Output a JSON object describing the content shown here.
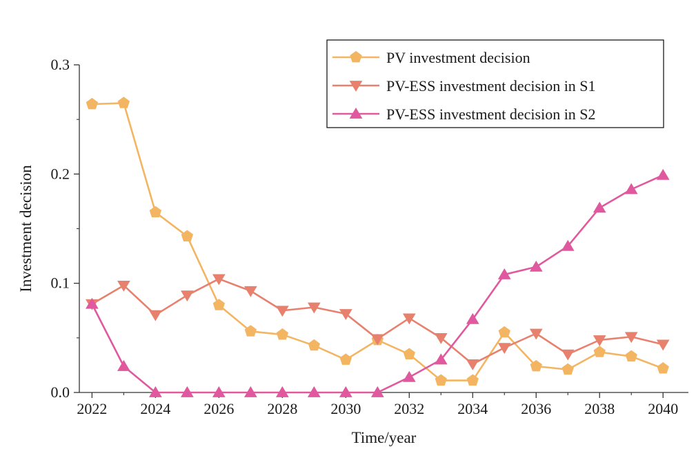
{
  "chart_data": {
    "type": "line",
    "title": "",
    "xlabel": "Time/year",
    "ylabel": "Investment decision",
    "xlim": [
      2021.6,
      2040.8
    ],
    "ylim": [
      0,
      0.3
    ],
    "x_ticks": [
      2022,
      2024,
      2026,
      2028,
      2030,
      2032,
      2034,
      2036,
      2038,
      2040
    ],
    "x_tick_labels": [
      "2022",
      "2024",
      "2026",
      "2028",
      "2030",
      "2032",
      "2034",
      "2036",
      "2038",
      "2040"
    ],
    "y_ticks": [
      0,
      0.1,
      0.2,
      0.3
    ],
    "y_tick_labels": [
      "0.0",
      "0.1",
      "0.2",
      "0.3"
    ],
    "grid": false,
    "legend_position": "top-right",
    "x": [
      2022,
      2023,
      2024,
      2025,
      2026,
      2027,
      2028,
      2029,
      2030,
      2031,
      2032,
      2033,
      2034,
      2035,
      2036,
      2037,
      2038,
      2039,
      2040
    ],
    "series": [
      {
        "name": "PV investment decision",
        "color": "#F3B562",
        "marker": "pentagon",
        "values": [
          0.264,
          0.265,
          0.165,
          0.143,
          0.08,
          0.056,
          0.053,
          0.043,
          0.03,
          0.048,
          0.035,
          0.011,
          0.011,
          0.055,
          0.024,
          0.021,
          0.037,
          0.033,
          0.022
        ]
      },
      {
        "name": "PV-ESS investment decision in S1",
        "color": "#E8806E",
        "marker": "triangle-down",
        "values": [
          0.081,
          0.098,
          0.071,
          0.089,
          0.104,
          0.093,
          0.075,
          0.078,
          0.072,
          0.049,
          0.068,
          0.05,
          0.026,
          0.041,
          0.054,
          0.035,
          0.048,
          0.051,
          0.044
        ]
      },
      {
        "name": "PV-ESS investment decision in S2",
        "color": "#E0589E",
        "marker": "triangle-up",
        "values": [
          0.081,
          0.024,
          0.0,
          0.0,
          0.0,
          0.0,
          0.0,
          0.0,
          0.0,
          0.0,
          0.014,
          0.03,
          0.067,
          0.108,
          0.115,
          0.134,
          0.169,
          0.186,
          0.199
        ]
      }
    ]
  }
}
